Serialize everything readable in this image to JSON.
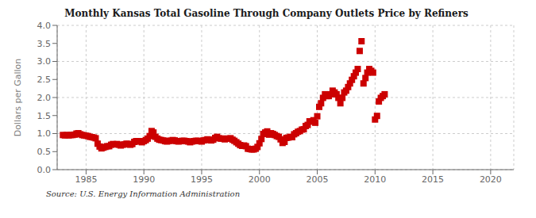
{
  "chart_data": {
    "type": "scatter",
    "title": "Monthly Kansas Total Gasoline Through Company Outlets Price by Refiners",
    "ylabel": "Dollars per Gallon",
    "annotation": "Source: U.S. Energy Information Administration",
    "color": "#cc0000",
    "marker": "square",
    "grid": true,
    "xlim": [
      1982.5,
      2022
    ],
    "ylim": [
      0.0,
      4.0
    ],
    "xticks": [
      1985,
      1990,
      1995,
      2000,
      2005,
      2010,
      2015,
      2020
    ],
    "yticks": [
      {
        "value": 0.0,
        "label": "0.0"
      },
      0.5,
      {
        "value": 1.0,
        "label": "1.0"
      },
      1.5,
      {
        "value": 2.0,
        "label": "2.0"
      },
      2.5,
      {
        "value": 3.0,
        "label": "3.0"
      },
      3.5,
      {
        "value": 4.0,
        "label": "4.0"
      }
    ],
    "x": [
      1983.0,
      1983.17,
      1983.33,
      1983.5,
      1983.67,
      1983.83,
      1984.0,
      1984.17,
      1984.33,
      1984.5,
      1984.67,
      1984.83,
      1985.0,
      1985.17,
      1985.33,
      1985.5,
      1985.67,
      1985.83,
      1986.0,
      1986.17,
      1986.33,
      1986.5,
      1986.67,
      1986.83,
      1987.0,
      1987.17,
      1987.33,
      1987.5,
      1987.67,
      1987.83,
      1988.0,
      1988.17,
      1988.33,
      1988.5,
      1988.67,
      1988.83,
      1989.0,
      1989.17,
      1989.33,
      1989.5,
      1989.67,
      1989.83,
      1990.0,
      1990.17,
      1990.33,
      1990.5,
      1990.67,
      1990.83,
      1991.0,
      1991.17,
      1991.33,
      1991.5,
      1991.67,
      1991.83,
      1992.0,
      1992.17,
      1992.33,
      1992.5,
      1992.67,
      1992.83,
      1993.0,
      1993.17,
      1993.33,
      1993.5,
      1993.67,
      1993.83,
      1994.0,
      1994.17,
      1994.33,
      1994.5,
      1994.67,
      1994.83,
      1995.0,
      1995.17,
      1995.33,
      1995.5,
      1995.67,
      1995.83,
      1996.0,
      1996.17,
      1996.33,
      1996.5,
      1996.67,
      1996.83,
      1997.0,
      1997.17,
      1997.33,
      1997.5,
      1997.67,
      1997.83,
      1998.0,
      1998.17,
      1998.33,
      1998.5,
      1998.67,
      1998.83,
      1999.0,
      1999.17,
      1999.33,
      1999.5,
      1999.67,
      1999.83,
      2000.0,
      2000.17,
      2000.33,
      2000.5,
      2000.67,
      2000.83,
      2001.0,
      2001.17,
      2001.33,
      2001.5,
      2001.67,
      2001.83,
      2002.0,
      2002.17,
      2002.33,
      2002.5,
      2002.67,
      2002.83,
      2003.0,
      2003.17,
      2003.33,
      2003.5,
      2003.67,
      2003.83,
      2004.0,
      2004.17,
      2004.33,
      2004.5,
      2004.67,
      2004.83,
      2005.0,
      2005.17,
      2005.33,
      2005.5,
      2005.67,
      2005.83,
      2006.0,
      2006.17,
      2006.33,
      2006.5,
      2006.67,
      2006.83,
      2007.0,
      2007.17,
      2007.33,
      2007.5,
      2007.67,
      2007.83,
      2008.0,
      2008.17,
      2008.33,
      2008.5,
      2008.67,
      2008.83,
      2009.0,
      2009.17,
      2009.33,
      2009.5,
      2009.67,
      2009.83,
      2010.0,
      2010.17,
      2010.33,
      2010.5,
      2010.67,
      2010.83
    ],
    "values": [
      0.96,
      0.95,
      0.96,
      0.95,
      0.96,
      0.96,
      0.97,
      1.0,
      1.01,
      0.98,
      0.96,
      0.95,
      0.94,
      0.93,
      0.91,
      0.9,
      0.89,
      0.87,
      0.72,
      0.64,
      0.59,
      0.61,
      0.63,
      0.65,
      0.65,
      0.69,
      0.71,
      0.7,
      0.71,
      0.69,
      0.67,
      0.69,
      0.7,
      0.72,
      0.71,
      0.69,
      0.71,
      0.77,
      0.79,
      0.79,
      0.78,
      0.76,
      0.79,
      0.82,
      0.86,
      0.93,
      1.07,
      1.03,
      0.91,
      0.86,
      0.83,
      0.82,
      0.81,
      0.79,
      0.78,
      0.8,
      0.8,
      0.82,
      0.81,
      0.79,
      0.78,
      0.79,
      0.8,
      0.8,
      0.79,
      0.78,
      0.76,
      0.78,
      0.79,
      0.8,
      0.8,
      0.79,
      0.78,
      0.81,
      0.82,
      0.84,
      0.83,
      0.81,
      0.83,
      0.88,
      0.91,
      0.87,
      0.86,
      0.86,
      0.84,
      0.86,
      0.86,
      0.87,
      0.83,
      0.8,
      0.76,
      0.72,
      0.68,
      0.66,
      0.67,
      0.65,
      0.58,
      0.57,
      0.56,
      0.56,
      0.58,
      0.63,
      0.73,
      0.85,
      0.99,
      1.03,
      1.06,
      0.97,
      1.01,
      0.99,
      0.96,
      0.93,
      0.91,
      0.84,
      0.74,
      0.77,
      0.88,
      0.89,
      0.91,
      0.9,
      0.98,
      1.01,
      1.05,
      1.07,
      1.11,
      1.12,
      1.21,
      1.24,
      1.34,
      1.33,
      1.37,
      1.3,
      1.48,
      1.74,
      1.84,
      1.99,
      2.09,
      2.04,
      2.04,
      2.09,
      2.19,
      2.14,
      2.09,
      1.99,
      1.84,
      1.99,
      2.14,
      2.19,
      2.29,
      2.39,
      2.49,
      2.59,
      2.69,
      2.79,
      3.29,
      3.56,
      2.39,
      2.54,
      2.69,
      2.79,
      2.74,
      2.69,
      1.39,
      1.49,
      1.89,
      1.99,
      2.04,
      2.09
    ]
  }
}
